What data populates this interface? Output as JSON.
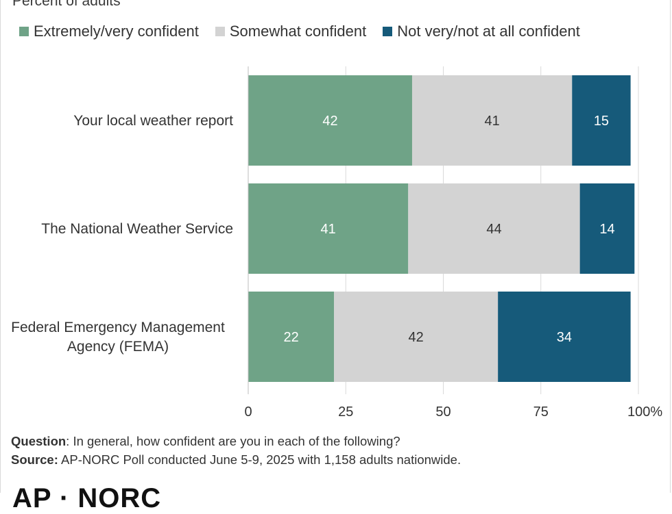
{
  "subtitle": "Percent of adults",
  "legend": [
    {
      "label": "Extremely/very confident",
      "color": "#6fa387"
    },
    {
      "label": "Somewhat confident",
      "color": "#d3d3d3"
    },
    {
      "label": "Not very/not at all confident",
      "color": "#165a7a"
    }
  ],
  "chart_data": {
    "type": "bar",
    "orientation": "horizontal",
    "stacked": true,
    "categories": [
      [
        "Your local weather report"
      ],
      [
        "The National Weather Service"
      ],
      [
        "Federal Emergency Management",
        "Agency (FEMA)"
      ]
    ],
    "series": [
      {
        "name": "Extremely/very confident",
        "values": [
          42,
          41,
          22
        ],
        "color": "#6fa387",
        "label_color": "#ffffff"
      },
      {
        "name": "Somewhat confident",
        "values": [
          41,
          44,
          42
        ],
        "color": "#d3d3d3",
        "label_color": "#333333"
      },
      {
        "name": "Not very/not at all confident",
        "values": [
          15,
          14,
          34
        ],
        "color": "#165a7a",
        "label_color": "#ffffff"
      }
    ],
    "xlim": [
      0,
      100
    ],
    "xticks": [
      "0",
      "25",
      "50",
      "75",
      "100%"
    ],
    "grid": true,
    "legend_position": "top"
  },
  "footer": {
    "question_label": "Question",
    "question_text": ": In general, how confident are you in each of the following?",
    "source_label": "Source:",
    "source_text": " AP-NORC Poll conducted June 5-9, 2025 with 1,158 adults nationwide."
  },
  "logo_text": "AP · NORC"
}
